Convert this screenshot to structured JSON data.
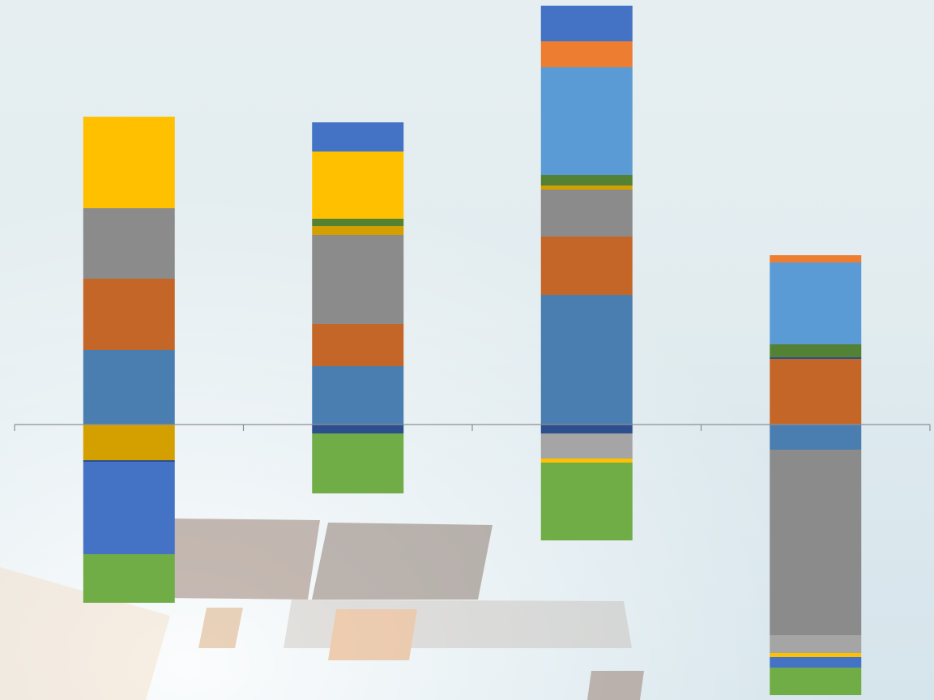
{
  "chart_data": {
    "type": "bar",
    "stacked": true,
    "categories": [
      "",
      "",
      "",
      ""
    ],
    "y_axis_visible": false,
    "grid": false,
    "legend": "none",
    "baseline": 0,
    "ylim": [
      -334,
      517
    ],
    "stacks": [
      {
        "positive": [
          {
            "color": "#4a7eb0",
            "value": 92
          },
          {
            "color": "#c46628",
            "value": 88
          },
          {
            "color": "#8b8b8b",
            "value": 87
          },
          {
            "color": "#ffc000",
            "value": 113
          }
        ],
        "negative": [
          {
            "color": "#d4a000",
            "value": 44
          },
          {
            "color": "#2e4f8e",
            "value": 2
          },
          {
            "color": "#4472c4",
            "value": 114
          },
          {
            "color": "#70ad47",
            "value": 60
          }
        ]
      },
      {
        "positive": [
          {
            "color": "#4a7eb0",
            "value": 72
          },
          {
            "color": "#c46628",
            "value": 52
          },
          {
            "color": "#8b8b8b",
            "value": 110
          },
          {
            "color": "#d4a000",
            "value": 11
          },
          {
            "color": "#548235",
            "value": 9
          },
          {
            "color": "#ffc000",
            "value": 83
          },
          {
            "color": "#4472c4",
            "value": 36
          }
        ],
        "negative": [
          {
            "color": "#2e4f8e",
            "value": 11
          },
          {
            "color": "#70ad47",
            "value": 74
          }
        ]
      },
      {
        "positive": [
          {
            "color": "#4a7eb0",
            "value": 160
          },
          {
            "color": "#c46628",
            "value": 72
          },
          {
            "color": "#8b8b8b",
            "value": 58
          },
          {
            "color": "#d4a000",
            "value": 5
          },
          {
            "color": "#548235",
            "value": 13
          },
          {
            "color": "#5b9bd5",
            "value": 133
          },
          {
            "color": "#ed7d31",
            "value": 32
          },
          {
            "color": "#4472c4",
            "value": 44
          }
        ],
        "negative": [
          {
            "color": "#2e4f8e",
            "value": 11
          },
          {
            "color": "#a5a5a5",
            "value": 31
          },
          {
            "color": "#ffc000",
            "value": 5
          },
          {
            "color": "#70ad47",
            "value": 96
          }
        ]
      },
      {
        "positive": [
          {
            "color": "#c46628",
            "value": 81
          },
          {
            "color": "#2e4f8e",
            "value": 2
          },
          {
            "color": "#548235",
            "value": 16
          },
          {
            "color": "#5b9bd5",
            "value": 101
          },
          {
            "color": "#ed7d31",
            "value": 9
          }
        ],
        "negative": [
          {
            "color": "#4a7eb0",
            "value": 31
          },
          {
            "color": "#8b8b8b",
            "value": 229
          },
          {
            "color": "#a5a5a5",
            "value": 22
          },
          {
            "color": "#ffc000",
            "value": 5
          },
          {
            "color": "#4472c4",
            "value": 13
          },
          {
            "color": "#70ad47",
            "value": 34
          }
        ]
      }
    ]
  }
}
